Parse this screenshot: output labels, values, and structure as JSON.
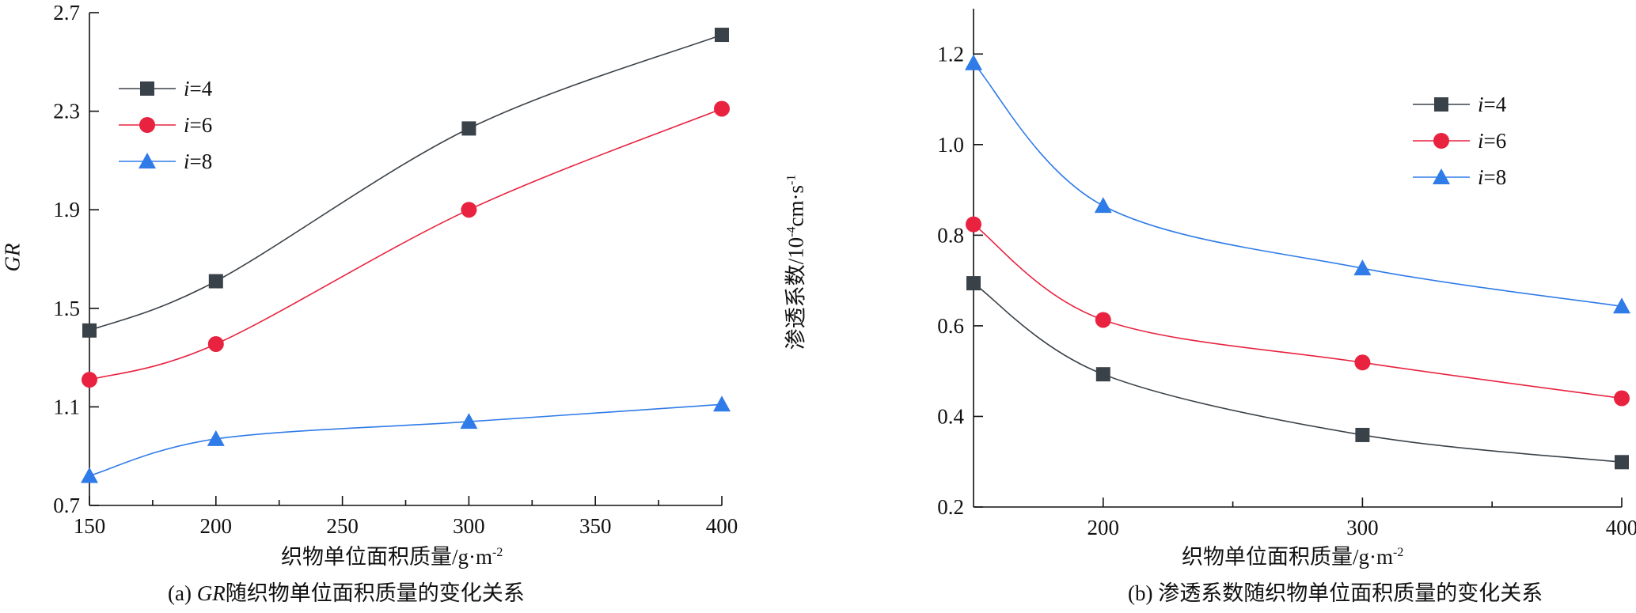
{
  "chart_data": [
    {
      "type": "line",
      "caption_prefix": "(a)",
      "caption_italic": "GR",
      "caption_rest": "随织物单位面积质量的变化关系",
      "xlabel": "织物单位面积质量/g·m",
      "xlabel_sup": "-2",
      "ylabel": "GR",
      "x": [
        150,
        200,
        300,
        400
      ],
      "xlim": [
        150,
        400
      ],
      "xticks": [
        150,
        200,
        250,
        300,
        350,
        400
      ],
      "xminor": [
        175,
        225,
        275,
        325,
        375
      ],
      "ylim": [
        0.7,
        2.7
      ],
      "yticks": [
        0.7,
        1.1,
        1.5,
        1.9,
        2.3,
        2.7
      ],
      "grid": false,
      "legend": "top-left",
      "series": [
        {
          "name": "i=4",
          "color": "#3a4249",
          "marker": "square",
          "values": [
            1.41,
            1.61,
            2.23,
            2.61
          ]
        },
        {
          "name": "i=6",
          "color": "#e8223f",
          "marker": "circle",
          "values": [
            1.21,
            1.355,
            1.9,
            2.31
          ]
        },
        {
          "name": "i=8",
          "color": "#2f7be8",
          "marker": "triangle",
          "values": [
            0.82,
            0.97,
            1.04,
            1.11
          ]
        }
      ]
    },
    {
      "type": "line",
      "caption_prefix": "(b)",
      "caption_italic": "",
      "caption_rest": "渗透系数随织物单位面积质量的变化关系",
      "xlabel": "织物单位面积质量/g·m",
      "xlabel_sup": "-2",
      "ylabel": "渗透系数/10",
      "ylabel_sup1": "-4",
      "ylabel_mid": "cm·s",
      "ylabel_sup2": "-1",
      "x": [
        150,
        200,
        300,
        400
      ],
      "xlim": [
        150,
        400
      ],
      "xticks": [
        200,
        300,
        400
      ],
      "xminor": [
        250,
        350
      ],
      "ylim": [
        0.2,
        1.3
      ],
      "yticks": [
        0.2,
        0.4,
        0.6,
        0.8,
        1.0,
        1.2
      ],
      "grid": false,
      "legend": "top-right",
      "series": [
        {
          "name": "i=4",
          "color": "#3a4249",
          "marker": "square",
          "values": [
            0.694,
            0.493,
            0.359,
            0.299
          ]
        },
        {
          "name": "i=6",
          "color": "#e8223f",
          "marker": "circle",
          "values": [
            0.824,
            0.613,
            0.519,
            0.44
          ]
        },
        {
          "name": "i=8",
          "color": "#2f7be8",
          "marker": "triangle",
          "values": [
            1.18,
            0.865,
            0.727,
            0.643
          ]
        }
      ]
    }
  ]
}
